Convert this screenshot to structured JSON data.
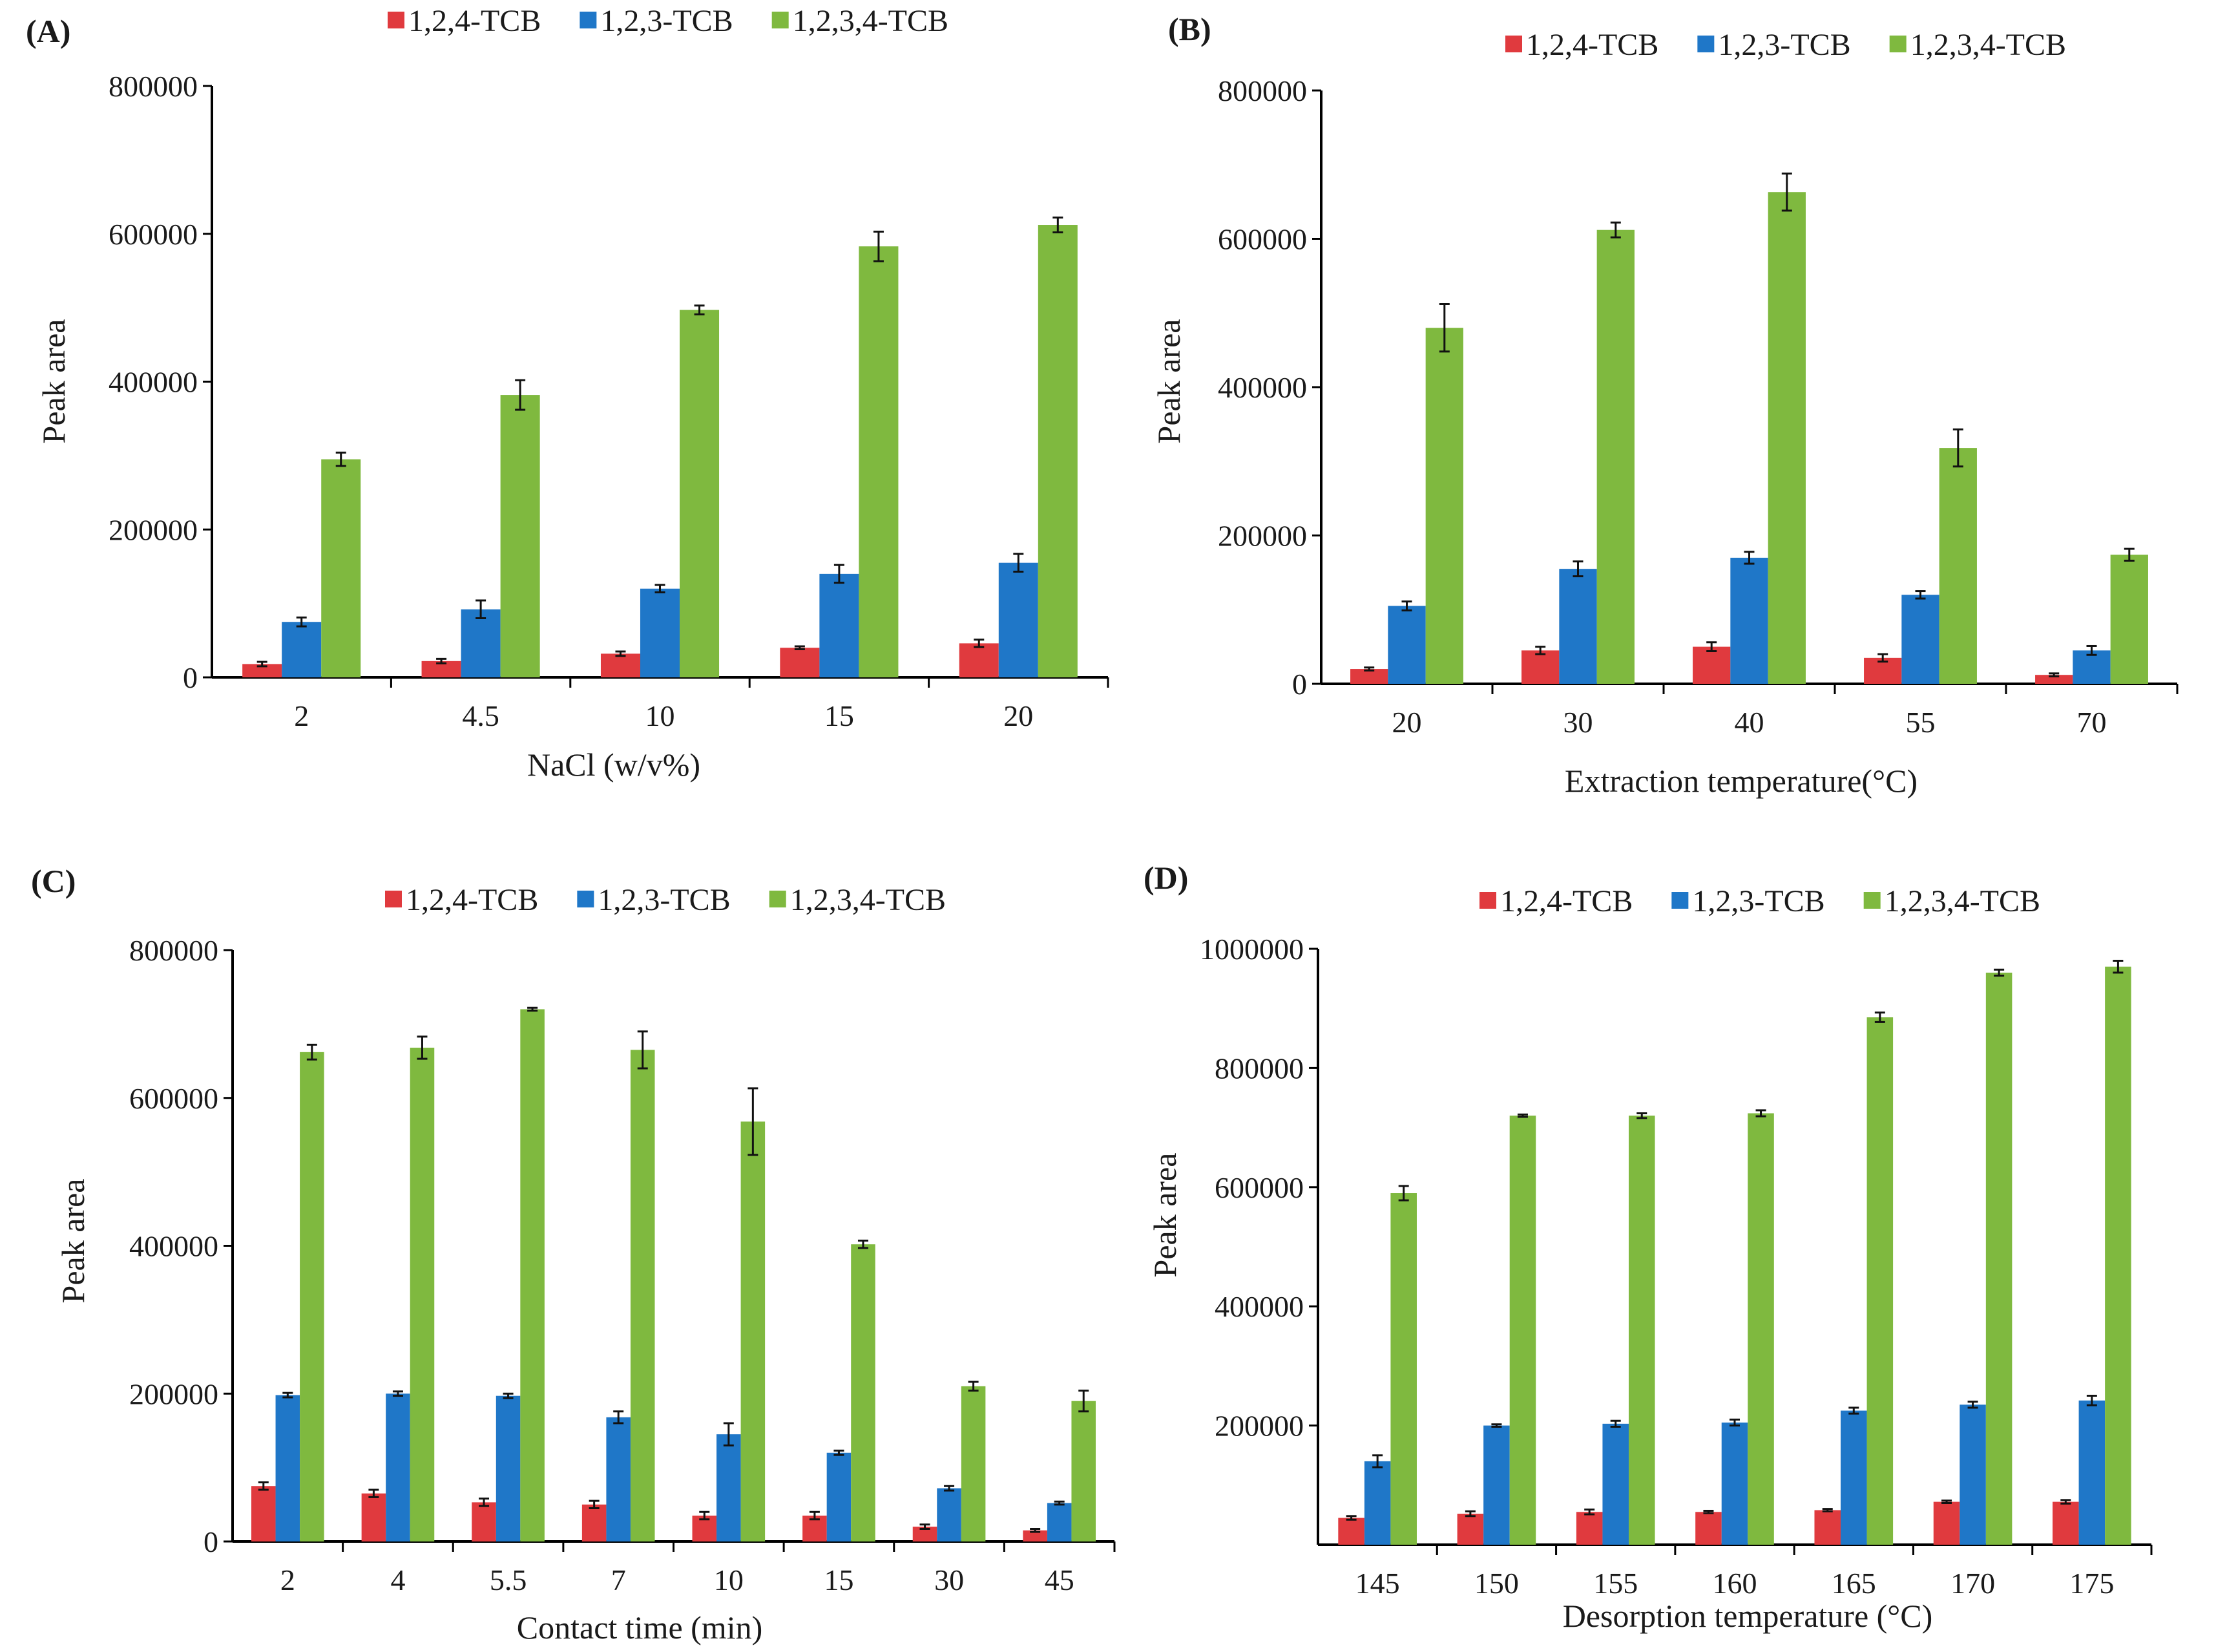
{
  "colors": {
    "s1": "#e03a3e",
    "s2": "#1f77c8",
    "s3": "#7fb93f"
  },
  "chart_data": [
    {
      "panel": "(A)",
      "type": "bar",
      "xlabel": "NaCl (w/v%)",
      "ylabel": "Peak area",
      "ylim": [
        0,
        800000
      ],
      "yticks": [
        "0",
        "200000",
        "400000",
        "600000",
        "800000"
      ],
      "categories": [
        "2",
        "4.5",
        "10",
        "15",
        "20"
      ],
      "series": [
        {
          "name": "1,2,4-TCB",
          "values": [
            18000,
            22000,
            32000,
            40000,
            46000
          ],
          "errors": [
            3000,
            3000,
            3000,
            2000,
            5000
          ]
        },
        {
          "name": "1,2,3-TCB",
          "values": [
            75000,
            92000,
            120000,
            140000,
            155000
          ],
          "errors": [
            6000,
            12000,
            5000,
            12000,
            12000
          ]
        },
        {
          "name": "1,2,3,4-TCB",
          "values": [
            295000,
            382000,
            497000,
            583000,
            612000
          ],
          "errors": [
            9000,
            20000,
            6000,
            20000,
            10000
          ]
        }
      ]
    },
    {
      "panel": "(B)",
      "type": "bar",
      "xlabel": "Extraction temperature(°C)",
      "ylabel": "Peak area",
      "ylim": [
        0,
        800000
      ],
      "yticks": [
        "0",
        "200000",
        "400000",
        "600000",
        "800000"
      ],
      "categories": [
        "20",
        "30",
        "40",
        "55",
        "70"
      ],
      "series": [
        {
          "name": "1,2,4-TCB",
          "values": [
            20000,
            45000,
            50000,
            35000,
            12000
          ],
          "errors": [
            2000,
            5000,
            6000,
            5000,
            2000
          ]
        },
        {
          "name": "1,2,3-TCB",
          "values": [
            105000,
            155000,
            170000,
            120000,
            45000
          ],
          "errors": [
            6000,
            10000,
            8000,
            5000,
            6000
          ]
        },
        {
          "name": "1,2,3,4-TCB",
          "values": [
            480000,
            612000,
            663000,
            318000,
            174000
          ],
          "errors": [
            32000,
            10000,
            25000,
            25000,
            8000
          ]
        }
      ]
    },
    {
      "panel": "(C)",
      "type": "bar",
      "xlabel": "Contact time (min)",
      "ylabel": "Peak area",
      "ylim": [
        0,
        800000
      ],
      "yticks": [
        "0",
        "200000",
        "400000",
        "600000",
        "800000"
      ],
      "categories": [
        "2",
        "4",
        "5.5",
        "7",
        "10",
        "15",
        "30",
        "45"
      ],
      "series": [
        {
          "name": "1,2,4-TCB",
          "values": [
            75000,
            65000,
            53000,
            50000,
            35000,
            35000,
            20000,
            15000
          ],
          "errors": [
            5000,
            5000,
            5000,
            5000,
            5000,
            5000,
            3000,
            2000
          ]
        },
        {
          "name": "1,2,3-TCB",
          "values": [
            198000,
            200000,
            197000,
            168000,
            145000,
            120000,
            72000,
            52000
          ],
          "errors": [
            3000,
            3000,
            3000,
            8000,
            15000,
            3000,
            3000,
            2000
          ]
        },
        {
          "name": "1,2,3,4-TCB",
          "values": [
            662000,
            668000,
            720000,
            665000,
            568000,
            402000,
            210000,
            190000
          ],
          "errors": [
            10000,
            15000,
            2000,
            25000,
            45000,
            5000,
            6000,
            14000
          ]
        }
      ]
    },
    {
      "panel": "(D)",
      "type": "bar",
      "xlabel": "Desorption temperature (°C)",
      "ylabel": "Peak area",
      "ylim": [
        0,
        1000000
      ],
      "yticks": [
        "200000",
        "400000",
        "600000",
        "800000",
        "1000000"
      ],
      "categories": [
        "145",
        "150",
        "155",
        "160",
        "165",
        "170",
        "175"
      ],
      "series": [
        {
          "name": "1,2,4-TCB",
          "values": [
            45000,
            52000,
            55000,
            55000,
            58000,
            72000,
            72000
          ],
          "errors": [
            3000,
            4000,
            4000,
            2000,
            2000,
            2000,
            3000
          ]
        },
        {
          "name": "1,2,3-TCB",
          "values": [
            140000,
            200000,
            203000,
            205000,
            225000,
            235000,
            242000
          ],
          "errors": [
            10000,
            2000,
            5000,
            5000,
            5000,
            5000,
            8000
          ]
        },
        {
          "name": "1,2,3,4-TCB",
          "values": [
            590000,
            720000,
            720000,
            724000,
            885000,
            960000,
            970000
          ],
          "errors": [
            12000,
            2000,
            4000,
            5000,
            8000,
            5000,
            10000
          ]
        }
      ]
    }
  ]
}
